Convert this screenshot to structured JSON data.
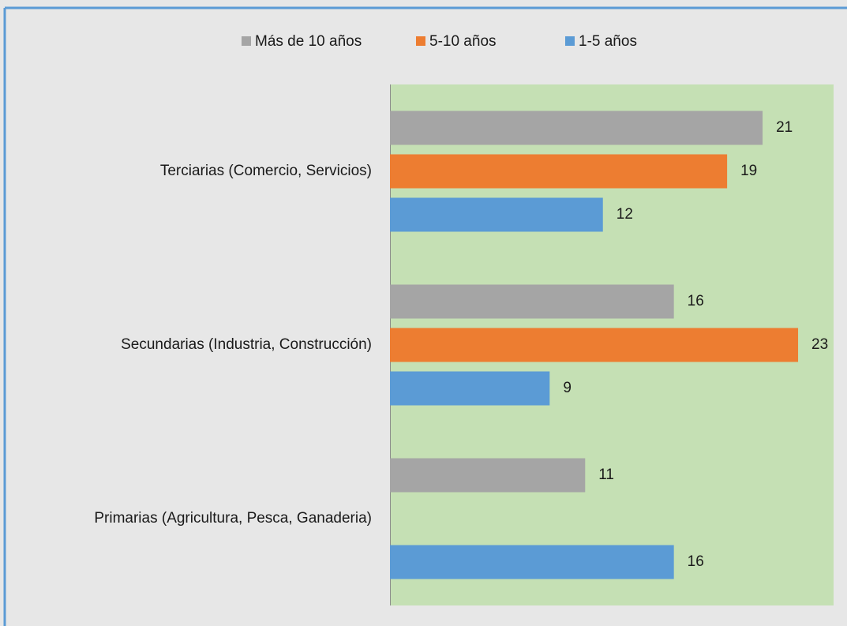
{
  "chart_data": {
    "type": "barh",
    "categories": [
      "Terciarias (Comercio, Servicios)",
      "Secundarias (Industria, Construcción)",
      "Primarias (Agricultura, Pesca, Ganaderia)"
    ],
    "series": [
      {
        "name": "Más de 10 años",
        "color": "#a5a5a5",
        "values": [
          21,
          16,
          11
        ]
      },
      {
        "name": "5-10 años",
        "color": "#ed7d31",
        "values": [
          19,
          23,
          null
        ]
      },
      {
        "name": "1-5 años",
        "color": "#5b9bd5",
        "values": [
          12,
          9,
          16
        ]
      }
    ],
    "xlim": [
      0,
      25
    ],
    "legend": "top"
  }
}
